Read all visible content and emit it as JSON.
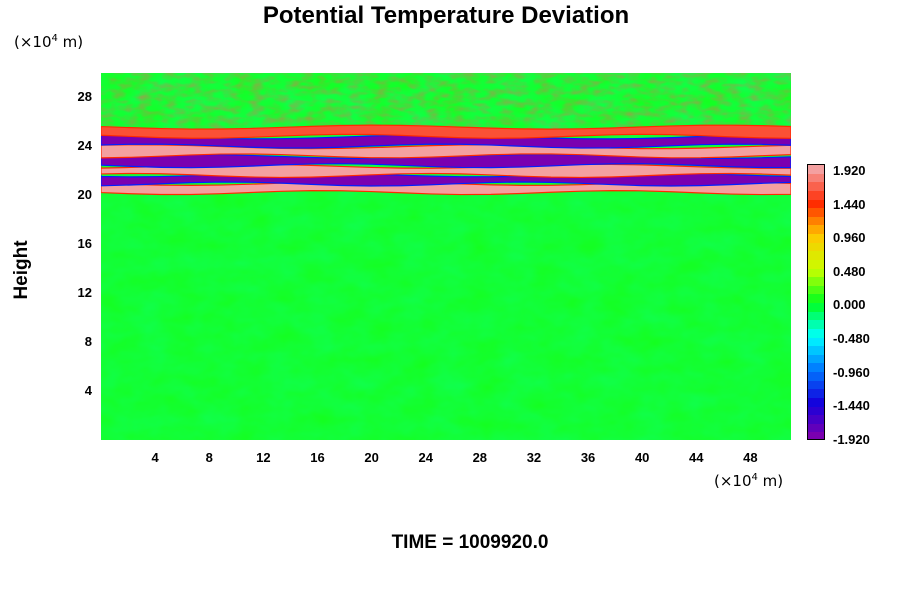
{
  "chart_data": {
    "type": "heatmap",
    "title": "Potential Temperature Deviation",
    "ylabel": "Height",
    "y_unit": {
      "prefix": "(×10",
      "exp": "4",
      "suffix": " m)"
    },
    "x_unit": {
      "prefix": "(×10",
      "exp": "4",
      "suffix": " m)"
    },
    "xlim": [
      0,
      51
    ],
    "ylim": [
      0,
      30
    ],
    "x_ticks": [
      "4",
      "8",
      "12",
      "16",
      "20",
      "24",
      "28",
      "32",
      "36",
      "40",
      "44",
      "48"
    ],
    "y_ticks": [
      "4",
      "8",
      "12",
      "16",
      "20",
      "24",
      "28"
    ],
    "colorbar": {
      "labels": [
        "1.920",
        "1.440",
        "0.960",
        "0.480",
        "0.000",
        "-0.480",
        "-0.960",
        "-1.440",
        "-1.920"
      ],
      "range": [
        -1.92,
        1.92
      ]
    },
    "bands": [
      {
        "y": 20.6,
        "value": 1.92
      },
      {
        "y": 21.3,
        "value": -1.92
      },
      {
        "y": 22.0,
        "value": 1.92
      },
      {
        "y": 22.8,
        "value": -1.92
      },
      {
        "y": 23.6,
        "value": 1.92
      },
      {
        "y": 24.4,
        "value": -1.92
      },
      {
        "y": 25.2,
        "value": 1.6
      }
    ],
    "background_value": 0.05
  },
  "footer": {
    "time": "TIME = 1009920.0"
  },
  "colors": {
    "max": "#f4a0a0",
    "min": "#7a00b0",
    "zero": "#00ff1e",
    "mid_pos": "#ffff00",
    "mid_neg": "#00ffff"
  }
}
